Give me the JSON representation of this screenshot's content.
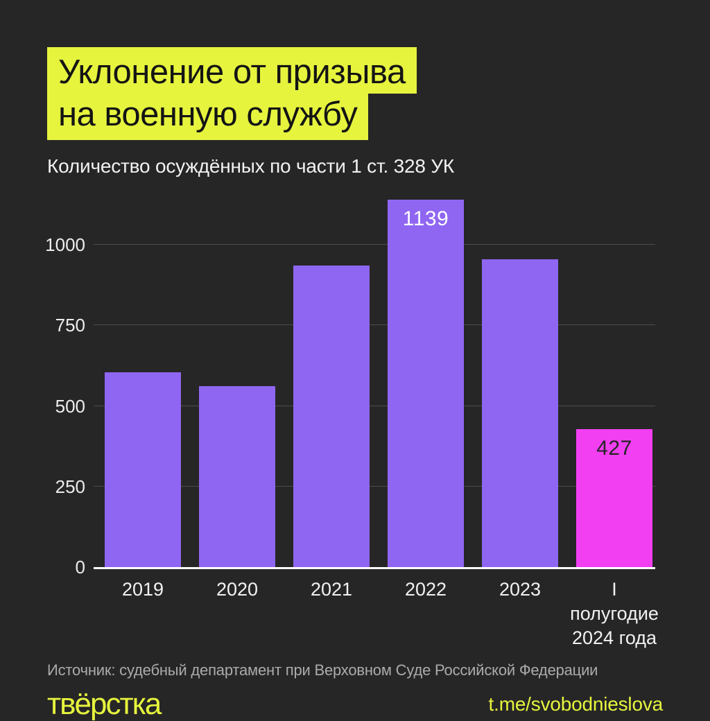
{
  "page": {
    "background": "#262626",
    "accent_yellow": "#e6f43d",
    "bar_purple": "#8f66f2",
    "bar_pink": "#f23ff2"
  },
  "header": {
    "title_line1": "Уклонение от призыва",
    "title_line2": "на военную службу",
    "subtitle": "Количество осуждённых по части 1 ст. 328 УК"
  },
  "chart_data": {
    "type": "bar",
    "title": "Количество осуждённых по части 1 ст. 328 УК",
    "categories": [
      "2019",
      "2020",
      "2021",
      "2022",
      "2023",
      "I полугодие\n2024 года"
    ],
    "values": [
      604,
      561,
      935,
      1139,
      955,
      427
    ],
    "bar_labels": [
      "",
      "",
      "",
      "1139",
      "",
      "427"
    ],
    "bar_label_colors": [
      "",
      "",
      "",
      "#ffffff",
      "",
      "#262626"
    ],
    "bar_colors": [
      "#8f66f2",
      "#8f66f2",
      "#8f66f2",
      "#8f66f2",
      "#8f66f2",
      "#f23ff2"
    ],
    "xlabel": "",
    "ylabel": "",
    "ylim": [
      0,
      1170
    ],
    "yticks": [
      0,
      250,
      500,
      750,
      1000
    ],
    "grid": "horizontal",
    "legend": "none",
    "axis_color": "#ffffff",
    "gridline_color": "#4d4d4d",
    "tick_label_color": "#ededed"
  },
  "footer": {
    "source": "Источник: судебный департамент при Верховном Суде Российской Федерации",
    "logo": "твёрстка",
    "link": "t.me/svobodnieslova"
  }
}
